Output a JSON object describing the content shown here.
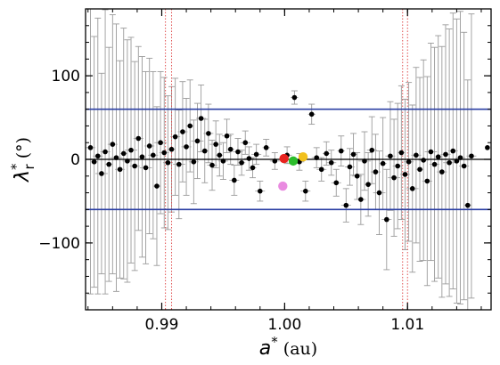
{
  "chart_data": {
    "type": "scatter",
    "xlim": [
      0.9838,
      1.0168
    ],
    "ylim": [
      -180,
      180
    ],
    "x_ticks": [
      {
        "value": 0.99,
        "label": "0.99"
      },
      {
        "value": 1.0,
        "label": "1.00"
      },
      {
        "value": 1.01,
        "label": "1.01"
      }
    ],
    "y_ticks": [
      {
        "value": 100,
        "label": "100"
      },
      {
        "value": 0,
        "label": "0"
      },
      {
        "value": -100,
        "label": "−100"
      }
    ],
    "x_minor_step": 0.002,
    "y_minor_step": 20,
    "xlabel": {
      "symbol": "a",
      "sup": "*",
      "unit": " (au)"
    },
    "ylabel": {
      "symbol": "λ",
      "sup": "*",
      "sub": "r",
      "unit": " (°)"
    },
    "grid": false,
    "hlines": [
      {
        "y": 60,
        "color": "#2b3fa3"
      },
      {
        "y": -60,
        "color": "#2b3fa3"
      },
      {
        "y": 0,
        "color": "#000000"
      }
    ],
    "vlines": [
      {
        "x": 0.9903,
        "color": "#e05050",
        "style": "dotted"
      },
      {
        "x": 0.9908,
        "color": "#e05050",
        "style": "dotted"
      },
      {
        "x": 1.0096,
        "color": "#e05050",
        "style": "dotted"
      },
      {
        "x": 1.01,
        "color": "#e05050",
        "style": "dotted"
      }
    ],
    "colors": {
      "point": "#000000",
      "errorbar": "#9a9a9a"
    },
    "highlighted_points": [
      {
        "x": 0.99995,
        "y": 1,
        "color": "#e8231f"
      },
      {
        "x": 1.0007,
        "y": -2,
        "color": "#2bbd2b"
      },
      {
        "x": 1.0015,
        "y": 3,
        "color": "#f2c11d"
      },
      {
        "x": 0.99985,
        "y": -32,
        "color": "#e98be0"
      }
    ],
    "points": [
      {
        "x": 0.9842,
        "y": 14,
        "ey": 175,
        "ex": 0.0004
      },
      {
        "x": 0.9845,
        "y": -3,
        "ey": 150,
        "ex": 0.0003
      },
      {
        "x": 0.9848,
        "y": 4,
        "ey": 165,
        "ex": 0.0004
      },
      {
        "x": 0.9851,
        "y": -17,
        "ey": 120,
        "ex": 0.0005
      },
      {
        "x": 0.9854,
        "y": 9,
        "ey": 170,
        "ex": 0.0004
      },
      {
        "x": 0.9857,
        "y": -6,
        "ey": 140,
        "ex": 0.0003
      },
      {
        "x": 0.986,
        "y": 18,
        "ey": 155,
        "ex": 0.0004
      },
      {
        "x": 0.9863,
        "y": 2,
        "ey": 160,
        "ex": 0.0005
      },
      {
        "x": 0.9866,
        "y": -12,
        "ey": 130,
        "ex": 0.0004
      },
      {
        "x": 0.9869,
        "y": 7,
        "ey": 150,
        "ex": 0.0003
      },
      {
        "x": 0.9872,
        "y": -2,
        "ey": 145,
        "ex": 0.0004
      },
      {
        "x": 0.9875,
        "y": 11,
        "ey": 135,
        "ex": 0.0005
      },
      {
        "x": 0.9878,
        "y": -8,
        "ey": 125,
        "ex": 0.0004
      },
      {
        "x": 0.9881,
        "y": 25,
        "ey": 110,
        "ex": 0.0004
      },
      {
        "x": 0.9884,
        "y": 3,
        "ey": 120,
        "ex": 0.0003
      },
      {
        "x": 0.9887,
        "y": -10,
        "ey": 115,
        "ex": 0.0005
      },
      {
        "x": 0.989,
        "y": 16,
        "ey": 105,
        "ex": 0.0004
      },
      {
        "x": 0.9893,
        "y": 5,
        "ey": 100,
        "ex": 0.0004
      },
      {
        "x": 0.9896,
        "y": -32,
        "ey": 95,
        "ex": 0.0003
      },
      {
        "x": 0.9899,
        "y": 20,
        "ey": 85,
        "ex": 0.0005
      },
      {
        "x": 0.9902,
        "y": 8,
        "ey": 90,
        "ex": 0.0004
      },
      {
        "x": 0.9905,
        "y": -4,
        "ey": 80,
        "ex": 0.0004
      },
      {
        "x": 0.9908,
        "y": 12,
        "ey": 75,
        "ex": 0.0003
      },
      {
        "x": 0.9911,
        "y": 27,
        "ey": 70,
        "ex": 0.0004
      },
      {
        "x": 0.9914,
        "y": -6,
        "ey": 65,
        "ex": 0.0005
      },
      {
        "x": 0.9917,
        "y": 33,
        "ey": 60,
        "ex": 0.0004
      },
      {
        "x": 0.992,
        "y": 15,
        "ey": 58,
        "ex": 0.0004
      },
      {
        "x": 0.9923,
        "y": 40,
        "ey": 55,
        "ex": 0.0003
      },
      {
        "x": 0.9926,
        "y": -3,
        "ey": 50,
        "ex": 0.0004
      },
      {
        "x": 0.9929,
        "y": 22,
        "ey": 45,
        "ex": 0.0005
      },
      {
        "x": 0.9932,
        "y": 49,
        "ey": 40,
        "ex": 0.0004
      },
      {
        "x": 0.9935,
        "y": 10,
        "ey": 38,
        "ex": 0.0003
      },
      {
        "x": 0.9938,
        "y": 31,
        "ey": 35,
        "ex": 0.0004
      },
      {
        "x": 0.9941,
        "y": -7,
        "ey": 30,
        "ex": 0.0004
      },
      {
        "x": 0.9944,
        "y": 18,
        "ey": 28,
        "ex": 0.0005
      },
      {
        "x": 0.9947,
        "y": 5,
        "ey": 25,
        "ex": 0.0003
      },
      {
        "x": 0.995,
        "y": -2,
        "ey": 22,
        "ex": 0.0004
      },
      {
        "x": 0.9953,
        "y": 28,
        "ey": 20,
        "ex": 0.0004
      },
      {
        "x": 0.9956,
        "y": 12,
        "ey": 18,
        "ex": 0.0003
      },
      {
        "x": 0.9959,
        "y": -25,
        "ey": 18,
        "ex": 0.0004
      },
      {
        "x": 0.9962,
        "y": 9,
        "ey": 16,
        "ex": 0.0004
      },
      {
        "x": 0.9965,
        "y": -4,
        "ey": 15,
        "ex": 0.0003
      },
      {
        "x": 0.9968,
        "y": 20,
        "ey": 14,
        "ex": 0.0004
      },
      {
        "x": 0.9971,
        "y": 1,
        "ey": 14,
        "ex": 0.0004
      },
      {
        "x": 0.9974,
        "y": -10,
        "ey": 12,
        "ex": 0.0003
      },
      {
        "x": 0.9977,
        "y": 6,
        "ey": 12,
        "ex": 0.0004
      },
      {
        "x": 0.998,
        "y": -38,
        "ey": 12,
        "ex": 0.0004
      },
      {
        "x": 0.9985,
        "y": 14,
        "ey": 10,
        "ex": 0.0003
      },
      {
        "x": 0.9992,
        "y": -2,
        "ey": 10,
        "ex": 0.0004
      },
      {
        "x": 1.0002,
        "y": 5,
        "ey": 10,
        "ex": 0.0004
      },
      {
        "x": 1.0008,
        "y": 74,
        "ey": 8,
        "ex": 0.0003
      },
      {
        "x": 1.0012,
        "y": -3,
        "ey": 10,
        "ex": 0.0004
      },
      {
        "x": 1.0017,
        "y": -38,
        "ey": 12,
        "ex": 0.0004
      },
      {
        "x": 1.0022,
        "y": 54,
        "ey": 12,
        "ex": 0.0003
      },
      {
        "x": 1.0026,
        "y": 2,
        "ey": 12,
        "ex": 0.0004
      },
      {
        "x": 1.003,
        "y": -12,
        "ey": 14,
        "ex": 0.0004
      },
      {
        "x": 1.0034,
        "y": 7,
        "ey": 14,
        "ex": 0.0003
      },
      {
        "x": 1.0038,
        "y": -4,
        "ey": 15,
        "ex": 0.0004
      },
      {
        "x": 1.0042,
        "y": -28,
        "ey": 16,
        "ex": 0.0004
      },
      {
        "x": 1.0046,
        "y": 10,
        "ey": 18,
        "ex": 0.0003
      },
      {
        "x": 1.005,
        "y": -55,
        "ey": 20,
        "ex": 0.0004
      },
      {
        "x": 1.0053,
        "y": -9,
        "ey": 22,
        "ex": 0.0004
      },
      {
        "x": 1.0056,
        "y": 6,
        "ey": 25,
        "ex": 0.0003
      },
      {
        "x": 1.0059,
        "y": -20,
        "ey": 28,
        "ex": 0.0004
      },
      {
        "x": 1.0062,
        "y": -48,
        "ey": 30,
        "ex": 0.0004
      },
      {
        "x": 1.0065,
        "y": -2,
        "ey": 35,
        "ex": 0.0005
      },
      {
        "x": 1.0068,
        "y": -30,
        "ey": 38,
        "ex": 0.0003
      },
      {
        "x": 1.0071,
        "y": 11,
        "ey": 40,
        "ex": 0.0004
      },
      {
        "x": 1.0074,
        "y": -15,
        "ey": 45,
        "ex": 0.0004
      },
      {
        "x": 1.0077,
        "y": -40,
        "ey": 50,
        "ex": 0.0005
      },
      {
        "x": 1.008,
        "y": -5,
        "ey": 55,
        "ex": 0.0003
      },
      {
        "x": 1.0083,
        "y": -72,
        "ey": 60,
        "ex": 0.0004
      },
      {
        "x": 1.0086,
        "y": 4,
        "ey": 65,
        "ex": 0.0004
      },
      {
        "x": 1.0089,
        "y": -22,
        "ey": 70,
        "ex": 0.0005
      },
      {
        "x": 1.0092,
        "y": -8,
        "ey": 75,
        "ex": 0.0004
      },
      {
        "x": 1.0095,
        "y": 8,
        "ey": 80,
        "ex": 0.0003
      },
      {
        "x": 1.0098,
        "y": -18,
        "ey": 90,
        "ex": 0.0004
      },
      {
        "x": 1.0101,
        "y": -3,
        "ey": 95,
        "ex": 0.0004
      },
      {
        "x": 1.0104,
        "y": -35,
        "ey": 100,
        "ex": 0.0005
      },
      {
        "x": 1.0107,
        "y": 5,
        "ey": 105,
        "ex": 0.0004
      },
      {
        "x": 1.011,
        "y": -12,
        "ey": 110,
        "ex": 0.0003
      },
      {
        "x": 1.0113,
        "y": -1,
        "ey": 120,
        "ex": 0.0004
      },
      {
        "x": 1.0116,
        "y": -26,
        "ey": 125,
        "ex": 0.0004
      },
      {
        "x": 1.0119,
        "y": 9,
        "ey": 130,
        "ex": 0.0005
      },
      {
        "x": 1.0122,
        "y": -6,
        "ey": 140,
        "ex": 0.0004
      },
      {
        "x": 1.0125,
        "y": 3,
        "ey": 145,
        "ex": 0.0003
      },
      {
        "x": 1.0128,
        "y": -15,
        "ey": 150,
        "ex": 0.0004
      },
      {
        "x": 1.0131,
        "y": 6,
        "ey": 155,
        "ex": 0.0004
      },
      {
        "x": 1.0134,
        "y": -4,
        "ey": 160,
        "ex": 0.0005
      },
      {
        "x": 1.0137,
        "y": 10,
        "ey": 165,
        "ex": 0.0004
      },
      {
        "x": 1.014,
        "y": -2,
        "ey": 170,
        "ex": 0.0003
      },
      {
        "x": 1.0143,
        "y": 2,
        "ey": 175,
        "ex": 0.0004
      },
      {
        "x": 1.0146,
        "y": -8,
        "ey": 160,
        "ex": 0.0004
      },
      {
        "x": 1.0149,
        "y": -55,
        "ey": 150,
        "ex": 0.0003
      },
      {
        "x": 1.0152,
        "y": 4,
        "ey": 170,
        "ex": 0.0004
      },
      {
        "x": 1.0165,
        "y": 14,
        "ey": 0,
        "ex": 0
      }
    ]
  }
}
